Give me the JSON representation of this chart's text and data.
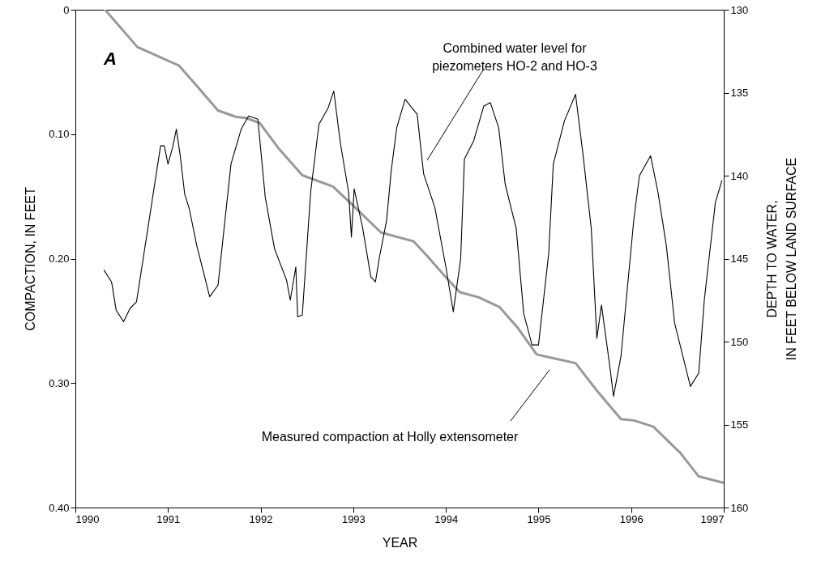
{
  "chart_data": {
    "type": "line",
    "xlabel": "YEAR",
    "ylabel": "COMPACTION, IN FEET",
    "y2label": "DEPTH TO WATER,\nIN FEET BELOW LAND SURFACE",
    "xlim": [
      1990,
      1997
    ],
    "xticks": [
      1990,
      1991,
      1992,
      1993,
      1994,
      1995,
      1996,
      1997
    ],
    "ylim": [
      0.4,
      0
    ],
    "yticks": [
      0,
      {
        "value": 0.1,
        "label": "0.10"
      },
      {
        "value": 0.2,
        "label": "0.20"
      },
      {
        "value": 0.3,
        "label": "0.30"
      },
      {
        "value": 0.4,
        "label": "0.40"
      }
    ],
    "y2lim": [
      160,
      130
    ],
    "y2ticks": [
      130,
      135,
      140,
      145,
      150,
      155,
      160
    ],
    "grid": false,
    "series": [
      {
        "color": "#999999",
        "x": [
          1990.32,
          1990.67,
          1991.12,
          1991.32,
          1991.54,
          1991.73,
          1991.84,
          1991.99,
          1992.19,
          1992.45,
          1992.78,
          1992.98,
          1993.3,
          1993.65,
          1993.8,
          1994.0,
          1994.15,
          1994.35,
          1994.58,
          1994.78,
          1994.98,
          1995.16,
          1995.4,
          1995.63,
          1995.89,
          1996.03,
          1996.24,
          1996.53,
          1996.73,
          1996.99
        ],
        "values": [
          0.0,
          0.03,
          0.045,
          0.062,
          0.081,
          0.086,
          0.087,
          0.091,
          0.111,
          0.133,
          0.142,
          0.156,
          0.179,
          0.186,
          0.198,
          0.215,
          0.227,
          0.231,
          0.239,
          0.256,
          0.277,
          0.28,
          0.284,
          0.306,
          0.329,
          0.33,
          0.335,
          0.356,
          0.375,
          0.38
        ]
      },
      {
        "color": "#000000",
        "axis": "y2",
        "x": [
          1990.31,
          1990.39,
          1990.4,
          1990.44,
          1990.52,
          1990.59,
          1990.66,
          1990.92,
          1990.96,
          1991.0,
          1991.05,
          1991.09,
          1991.13,
          1991.18,
          1991.23,
          1991.31,
          1991.45,
          1991.54,
          1991.68,
          1991.79,
          1991.87,
          1991.97,
          1992.05,
          1992.15,
          1992.28,
          1992.32,
          1992.38,
          1992.4,
          1992.45,
          1992.54,
          1992.63,
          1992.73,
          1992.79,
          1992.86,
          1992.95,
          1992.98,
          1993.01,
          1993.1,
          1993.19,
          1993.24,
          1993.28,
          1993.36,
          1993.41,
          1993.47,
          1993.56,
          1993.69,
          1993.76,
          1993.88,
          1994.0,
          1994.08,
          1994.16,
          1994.2,
          1994.3,
          1994.41,
          1994.48,
          1994.57,
          1994.64,
          1994.76,
          1994.84,
          1994.93,
          1995.0,
          1995.11,
          1995.16,
          1995.28,
          1995.4,
          1995.48,
          1995.57,
          1995.63,
          1995.68,
          1995.77,
          1995.81,
          1995.89,
          1996.03,
          1996.09,
          1996.21,
          1996.29,
          1996.38,
          1996.47,
          1996.64,
          1996.73,
          1996.79,
          1996.91,
          1996.98
        ],
        "values": [
          145.7,
          146.4,
          146.7,
          148.1,
          148.8,
          148.0,
          147.6,
          138.2,
          138.2,
          139.3,
          138.3,
          137.2,
          138.7,
          141.1,
          142.0,
          144.2,
          147.3,
          146.6,
          139.3,
          137.2,
          136.4,
          136.6,
          141.3,
          144.4,
          146.3,
          147.5,
          145.5,
          148.5,
          148.4,
          141.0,
          136.9,
          135.9,
          134.9,
          138.0,
          141.0,
          143.7,
          140.8,
          143.1,
          146.1,
          146.4,
          145.0,
          142.7,
          139.7,
          137.1,
          135.4,
          136.3,
          139.9,
          141.9,
          145.5,
          148.2,
          145.0,
          139.0,
          137.9,
          135.8,
          135.6,
          137.1,
          140.5,
          143.2,
          148.3,
          150.2,
          150.2,
          144.7,
          139.3,
          136.7,
          135.1,
          138.7,
          143.2,
          149.8,
          147.8,
          151.5,
          153.3,
          150.9,
          142.6,
          140.0,
          138.8,
          141.0,
          144.2,
          148.9,
          152.7,
          151.9,
          147.5,
          141.6,
          140.3
        ]
      }
    ],
    "annotations": [
      "A",
      "Combined water level for\npiezometers HO-2 and HO-3",
      "Measured compaction at Holly extensometer"
    ]
  }
}
